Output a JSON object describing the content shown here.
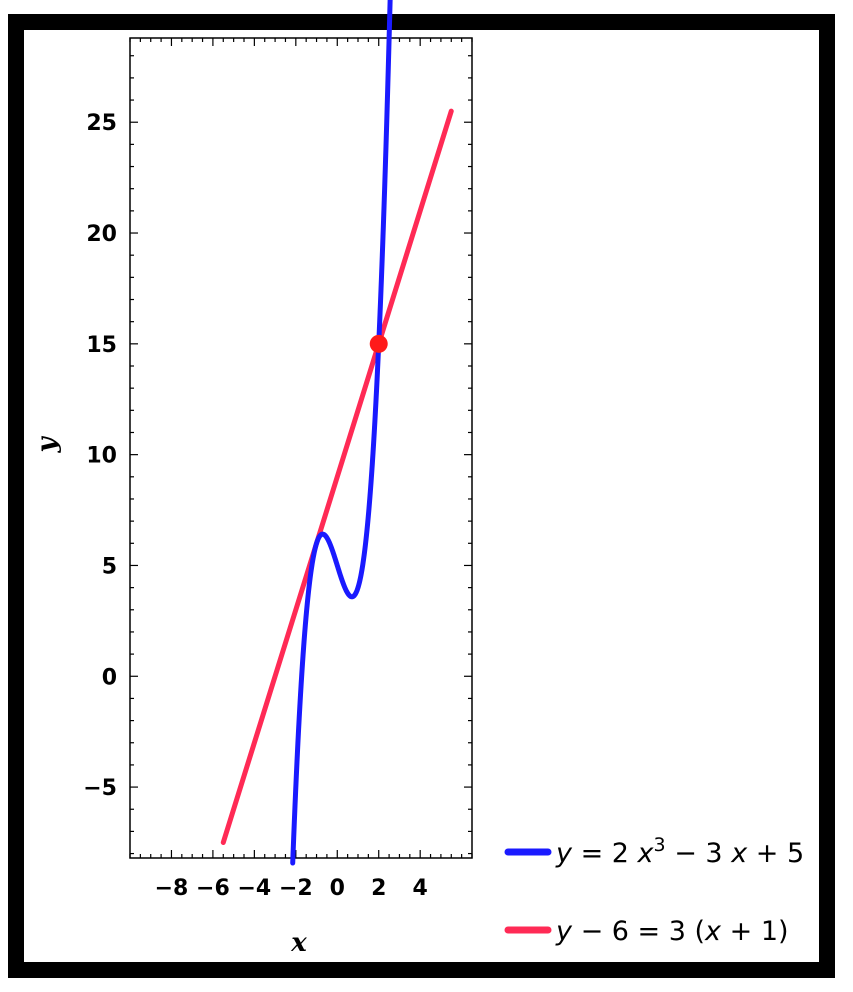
{
  "chart_data": {
    "type": "line",
    "xlabel": "x",
    "ylabel": "y",
    "xlim": [
      -10,
      6.5
    ],
    "ylim": [
      -8.2,
      28.8
    ],
    "x_ticks": [
      -8,
      -6,
      -4,
      -2,
      0,
      2,
      4
    ],
    "x_tick_labels": [
      "-8",
      "-6",
      "-4",
      "-2",
      "0",
      "2",
      "4"
    ],
    "y_ticks": [
      -5,
      0,
      5,
      10,
      15,
      20,
      25
    ],
    "y_tick_labels": [
      "-5",
      "0",
      "5",
      "10",
      "15",
      "20",
      "25"
    ],
    "grid": false,
    "legend_position": "bottom-right, outside plot",
    "series": [
      {
        "name": "y = 2 x^3 - 3 x + 5",
        "color": "#1a1aff",
        "kind": "cubic",
        "coefficients": [
          2,
          0,
          -3,
          5
        ],
        "x_range": [
          -2.15,
          2.55
        ]
      },
      {
        "name": "y - 6 = 3 (x + 1)",
        "color": "#ff2a55",
        "kind": "linear",
        "slope": 3,
        "intercept": 9,
        "x_range": [
          -5.5,
          5.5
        ]
      }
    ],
    "points": [
      {
        "x": 2,
        "y": 15,
        "color": "#ff1a1a"
      }
    ],
    "legend": [
      {
        "series": 0,
        "parts": [
          "y",
          " = 2 ",
          "x",
          "3",
          " − 3 ",
          "x",
          " + 5"
        ]
      },
      {
        "series": 1,
        "parts": [
          "y",
          " − 6 = 3 (",
          "x",
          " + 1)"
        ]
      }
    ]
  }
}
